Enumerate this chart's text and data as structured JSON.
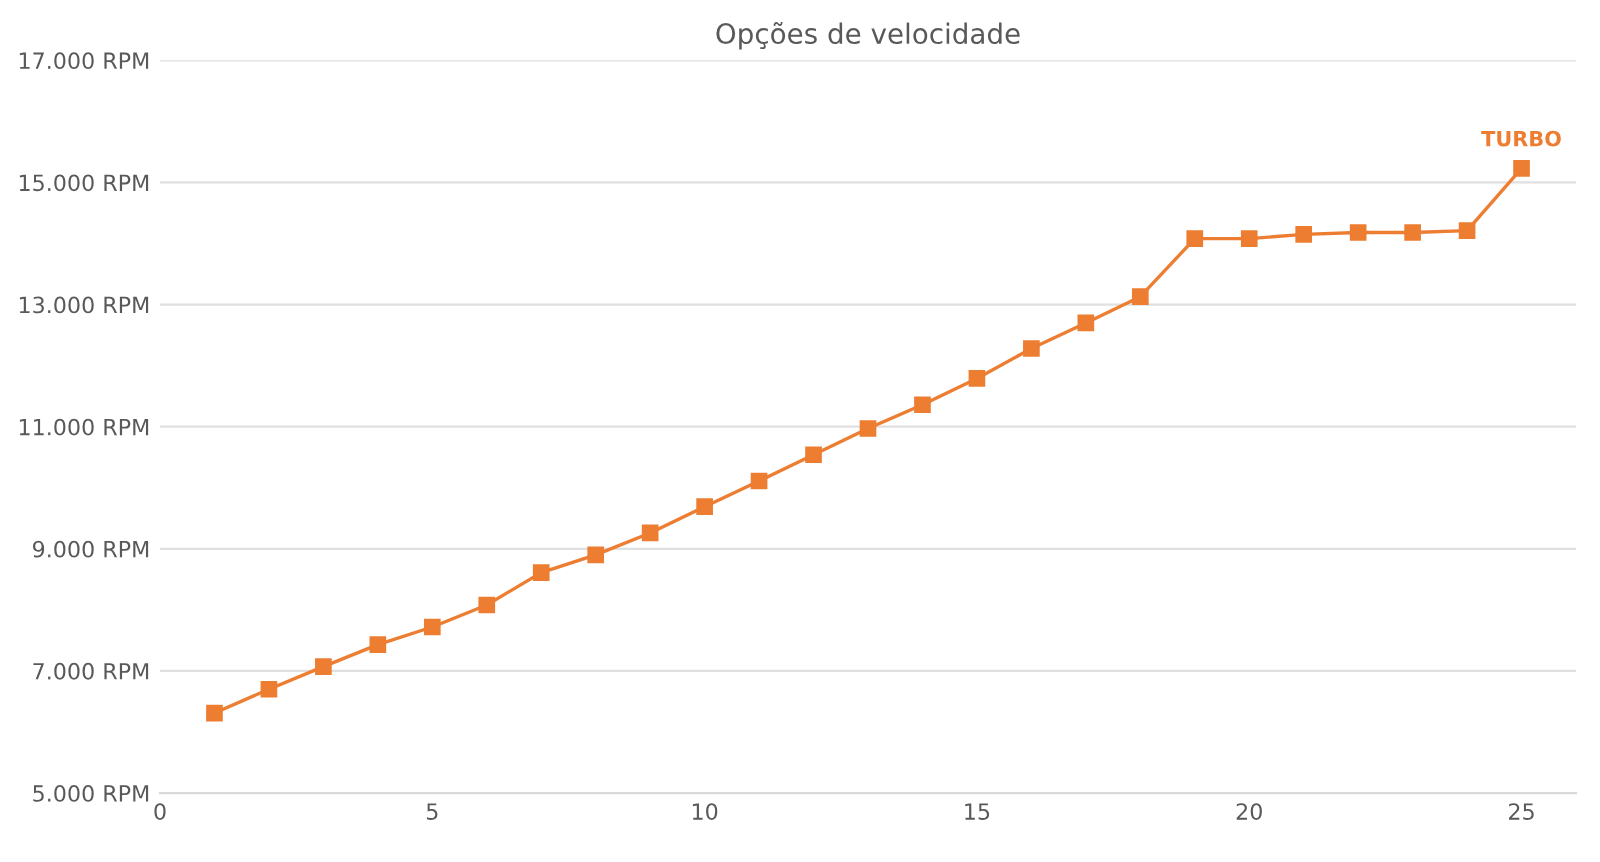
{
  "chart_data": {
    "type": "line",
    "title": "Opções de velocidade",
    "x": [
      1,
      2,
      3,
      4,
      5,
      6,
      7,
      8,
      9,
      10,
      11,
      12,
      13,
      14,
      15,
      16,
      17,
      18,
      19,
      20,
      21,
      22,
      23,
      24,
      25
    ],
    "series": [
      {
        "color": "#ed7d31",
        "values": [
          6310,
          6700,
          7070,
          7430,
          7720,
          8080,
          8610,
          8900,
          9260,
          9690,
          10110,
          10540,
          10970,
          11360,
          11790,
          12280,
          12700,
          13130,
          14080,
          14080,
          14150,
          14180,
          14180,
          14210,
          15230
        ]
      }
    ],
    "annotations": [
      {
        "text": "TURBO",
        "x": 25,
        "y": 15230
      }
    ],
    "xlim": [
      0,
      26
    ],
    "xticks": [
      0,
      5,
      10,
      15,
      20,
      25
    ],
    "ylim": [
      5000,
      17000
    ],
    "yticks": [
      {
        "value": 5000,
        "label": "5.000 RPM"
      },
      {
        "value": 7000,
        "label": "7.000 RPM"
      },
      {
        "value": 9000,
        "label": "9.000 RPM"
      },
      {
        "value": 11000,
        "label": "11.000 RPM"
      },
      {
        "value": 13000,
        "label": "13.000 RPM"
      },
      {
        "value": 15000,
        "label": "15.000 RPM"
      },
      {
        "value": 17000,
        "label": "17.000 RPM"
      }
    ],
    "grid": "y",
    "marker": "square",
    "line_style": "solid"
  }
}
